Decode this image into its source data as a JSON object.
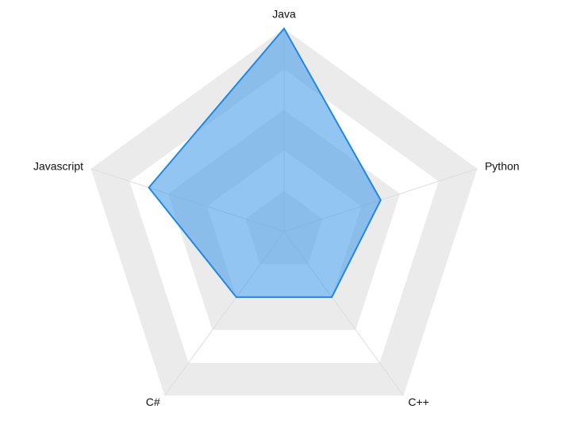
{
  "chart_data": {
    "type": "radar",
    "indicators": [
      "Java",
      "Python",
      "C++",
      "C#",
      "Javascript"
    ],
    "max": 100,
    "split_number": 5,
    "series": [
      {
        "values": [
          100,
          50,
          40,
          40,
          70
        ]
      }
    ],
    "colors": {
      "area": "#4a9eea",
      "line": "#1e88e5",
      "band": "#ebebeb",
      "gridline": "#dddddd"
    }
  }
}
